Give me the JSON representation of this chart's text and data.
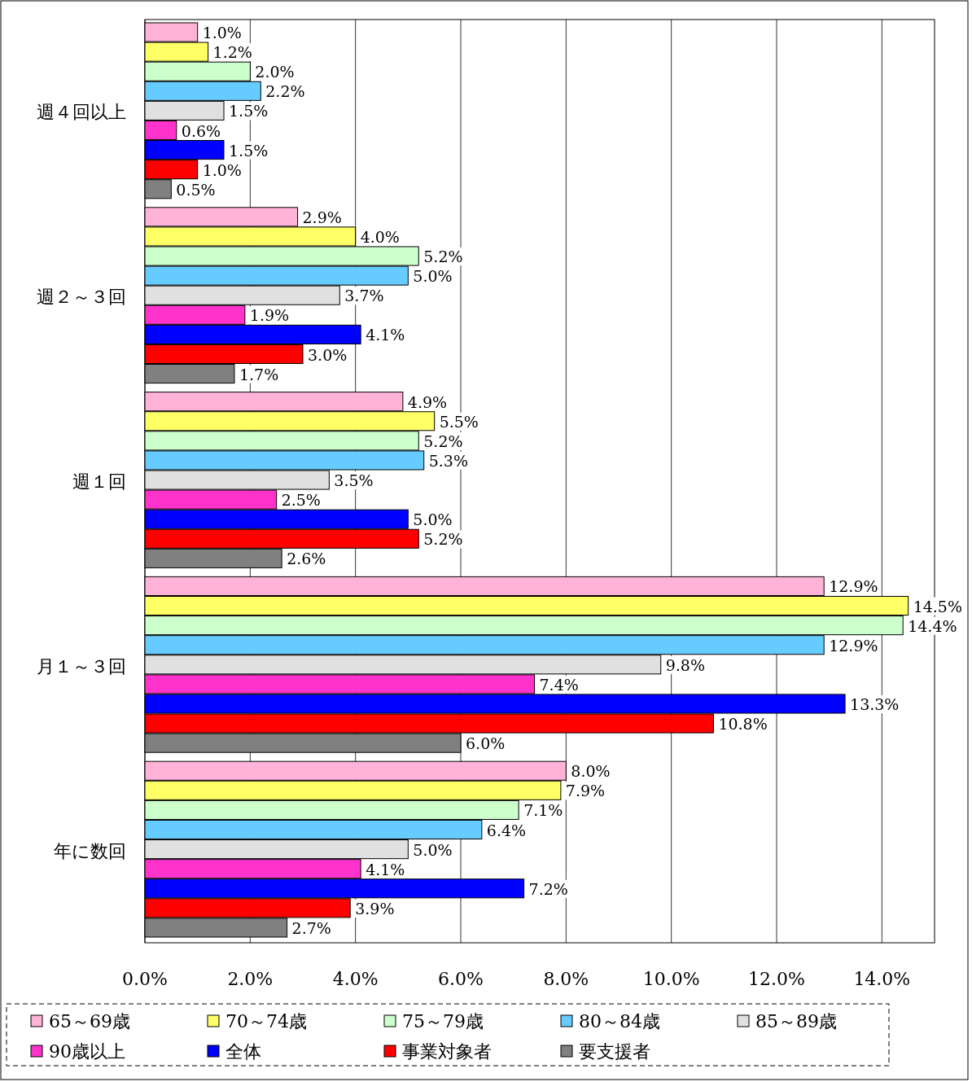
{
  "chart_data": {
    "type": "bar",
    "orientation": "horizontal",
    "categories": [
      "週４回以上",
      "週２～３回",
      "週１回",
      "月１～３回",
      "年に数回"
    ],
    "series": [
      {
        "name": "65～69歳",
        "color": "#ffb3d9",
        "values": [
          1.0,
          2.9,
          4.9,
          12.9,
          8.0
        ],
        "value_labels": [
          "1.0%",
          "2.9%",
          "4.9%",
          "12.9%",
          "8.0%"
        ]
      },
      {
        "name": "70～74歳",
        "color": "#ffff66",
        "values": [
          1.2,
          4.0,
          5.5,
          14.5,
          7.9
        ],
        "value_labels": [
          "1.2%",
          "4.0%",
          "5.5%",
          "14.5%",
          "7.9%"
        ]
      },
      {
        "name": "75～79歳",
        "color": "#ccffcc",
        "values": [
          2.0,
          5.2,
          5.2,
          14.4,
          7.1
        ],
        "value_labels": [
          "2.0%",
          "5.2%",
          "5.2%",
          "14.4%",
          "7.1%"
        ]
      },
      {
        "name": "80～84歳",
        "color": "#66ccff",
        "values": [
          2.2,
          5.0,
          5.3,
          12.9,
          6.4
        ],
        "value_labels": [
          "2.2%",
          "5.0%",
          "5.3%",
          "12.9%",
          "6.4%"
        ]
      },
      {
        "name": "85～89歳",
        "color": "#e0e0e0",
        "values": [
          1.5,
          3.7,
          3.5,
          9.8,
          5.0
        ],
        "value_labels": [
          "1.5%",
          "3.7%",
          "3.5%",
          "9.8%",
          "5.0%"
        ]
      },
      {
        "name": "90歳以上",
        "color": "#ff33cc",
        "values": [
          0.6,
          1.9,
          2.5,
          7.4,
          4.1
        ],
        "value_labels": [
          "0.6%",
          "1.9%",
          "2.5%",
          "7.4%",
          "4.1%"
        ]
      },
      {
        "name": "全体",
        "color": "#0000ff",
        "values": [
          1.5,
          4.1,
          5.0,
          13.3,
          7.2
        ],
        "value_labels": [
          "1.5%",
          "4.1%",
          "5.0%",
          "13.3%",
          "7.2%"
        ]
      },
      {
        "name": "事業対象者",
        "color": "#ff0000",
        "values": [
          1.0,
          3.0,
          5.2,
          10.8,
          3.9
        ],
        "value_labels": [
          "1.0%",
          "3.0%",
          "5.2%",
          "10.8%",
          "3.9%"
        ]
      },
      {
        "name": "要支援者",
        "color": "#808080",
        "values": [
          0.5,
          1.7,
          2.6,
          6.0,
          2.7
        ],
        "value_labels": [
          "0.5%",
          "1.7%",
          "2.6%",
          "6.0%",
          "2.7%"
        ]
      }
    ],
    "xlim": [
      0,
      15
    ],
    "xticks": [
      {
        "value": 0,
        "label": "0.0%"
      },
      {
        "value": 2,
        "label": "2.0%"
      },
      {
        "value": 4,
        "label": "4.0%"
      },
      {
        "value": 6,
        "label": "6.0%"
      },
      {
        "value": 8,
        "label": "8.0%"
      },
      {
        "value": 10,
        "label": "10.0%"
      },
      {
        "value": 12,
        "label": "12.0%"
      },
      {
        "value": 14,
        "label": "14.0%"
      }
    ],
    "grid": "x",
    "legend": "bottom"
  }
}
